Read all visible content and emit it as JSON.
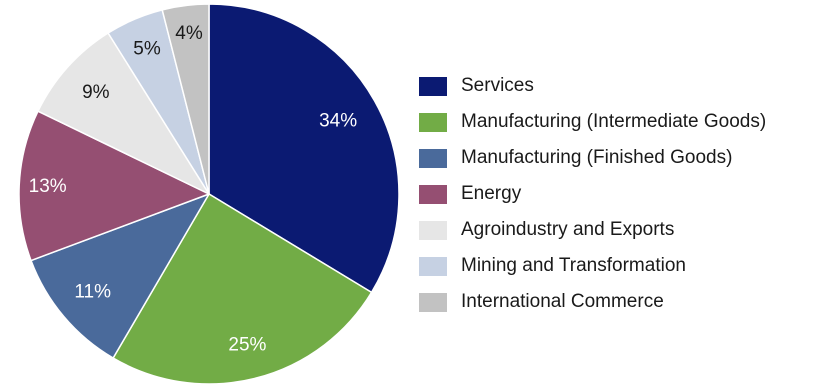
{
  "chart_data": {
    "type": "pie",
    "categories": [
      "Services",
      "Manufacturing (Intermediate Goods)",
      "Manufacturing (Finished Goods)",
      "Energy",
      "Agroindustry and Exports",
      "Mining and Transformation",
      "International Commerce"
    ],
    "values": [
      34,
      25,
      11,
      13,
      9,
      5,
      4
    ],
    "value_labels": [
      "34%",
      "25%",
      "11%",
      "13%",
      "9%",
      "5%",
      "4%"
    ],
    "colors": [
      "#0b1a72",
      "#72ac46",
      "#4a6a9b",
      "#954f72",
      "#e6e6e6",
      "#c6d1e3",
      "#c2c2c2"
    ],
    "label_colors": [
      "#ffffff",
      "#ffffff",
      "#ffffff",
      "#ffffff",
      "#1a1a1a",
      "#1a1a1a",
      "#1a1a1a"
    ],
    "start_angle_deg": 0,
    "direction": "clockwise",
    "legend_position": "right"
  }
}
